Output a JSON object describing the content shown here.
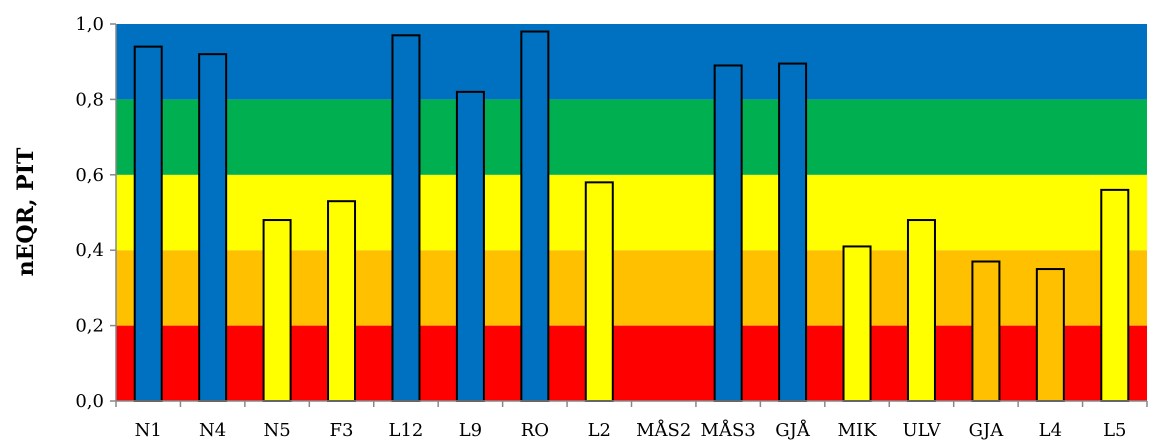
{
  "chart_data": {
    "type": "bar",
    "ylabel": "nEQR, PIT",
    "ylim": [
      0,
      1.0
    ],
    "yticks": [
      "0,0",
      "0,2",
      "0,4",
      "0,6",
      "0,8",
      "1,0"
    ],
    "categories": [
      "N1",
      "N4",
      "N5",
      "F3",
      "L12",
      "L9",
      "RO",
      "L2",
      "MÅS2",
      "MÅS3",
      "GJÅ",
      "MIK",
      "ULV",
      "GJA",
      "L4",
      "L5"
    ],
    "values": [
      0.94,
      0.92,
      0.48,
      0.53,
      0.97,
      0.82,
      0.98,
      0.58,
      null,
      0.89,
      0.895,
      0.41,
      0.48,
      0.37,
      0.35,
      0.56
    ],
    "bands": [
      {
        "from": 0.0,
        "to": 0.2,
        "color": "#ff0000"
      },
      {
        "from": 0.2,
        "to": 0.4,
        "color": "#ffc000"
      },
      {
        "from": 0.4,
        "to": 0.6,
        "color": "#ffff00"
      },
      {
        "from": 0.6,
        "to": 0.8,
        "color": "#00b050"
      },
      {
        "from": 0.8,
        "to": 1.0,
        "color": "#0070c0"
      }
    ],
    "grid": false,
    "legend": "none"
  }
}
